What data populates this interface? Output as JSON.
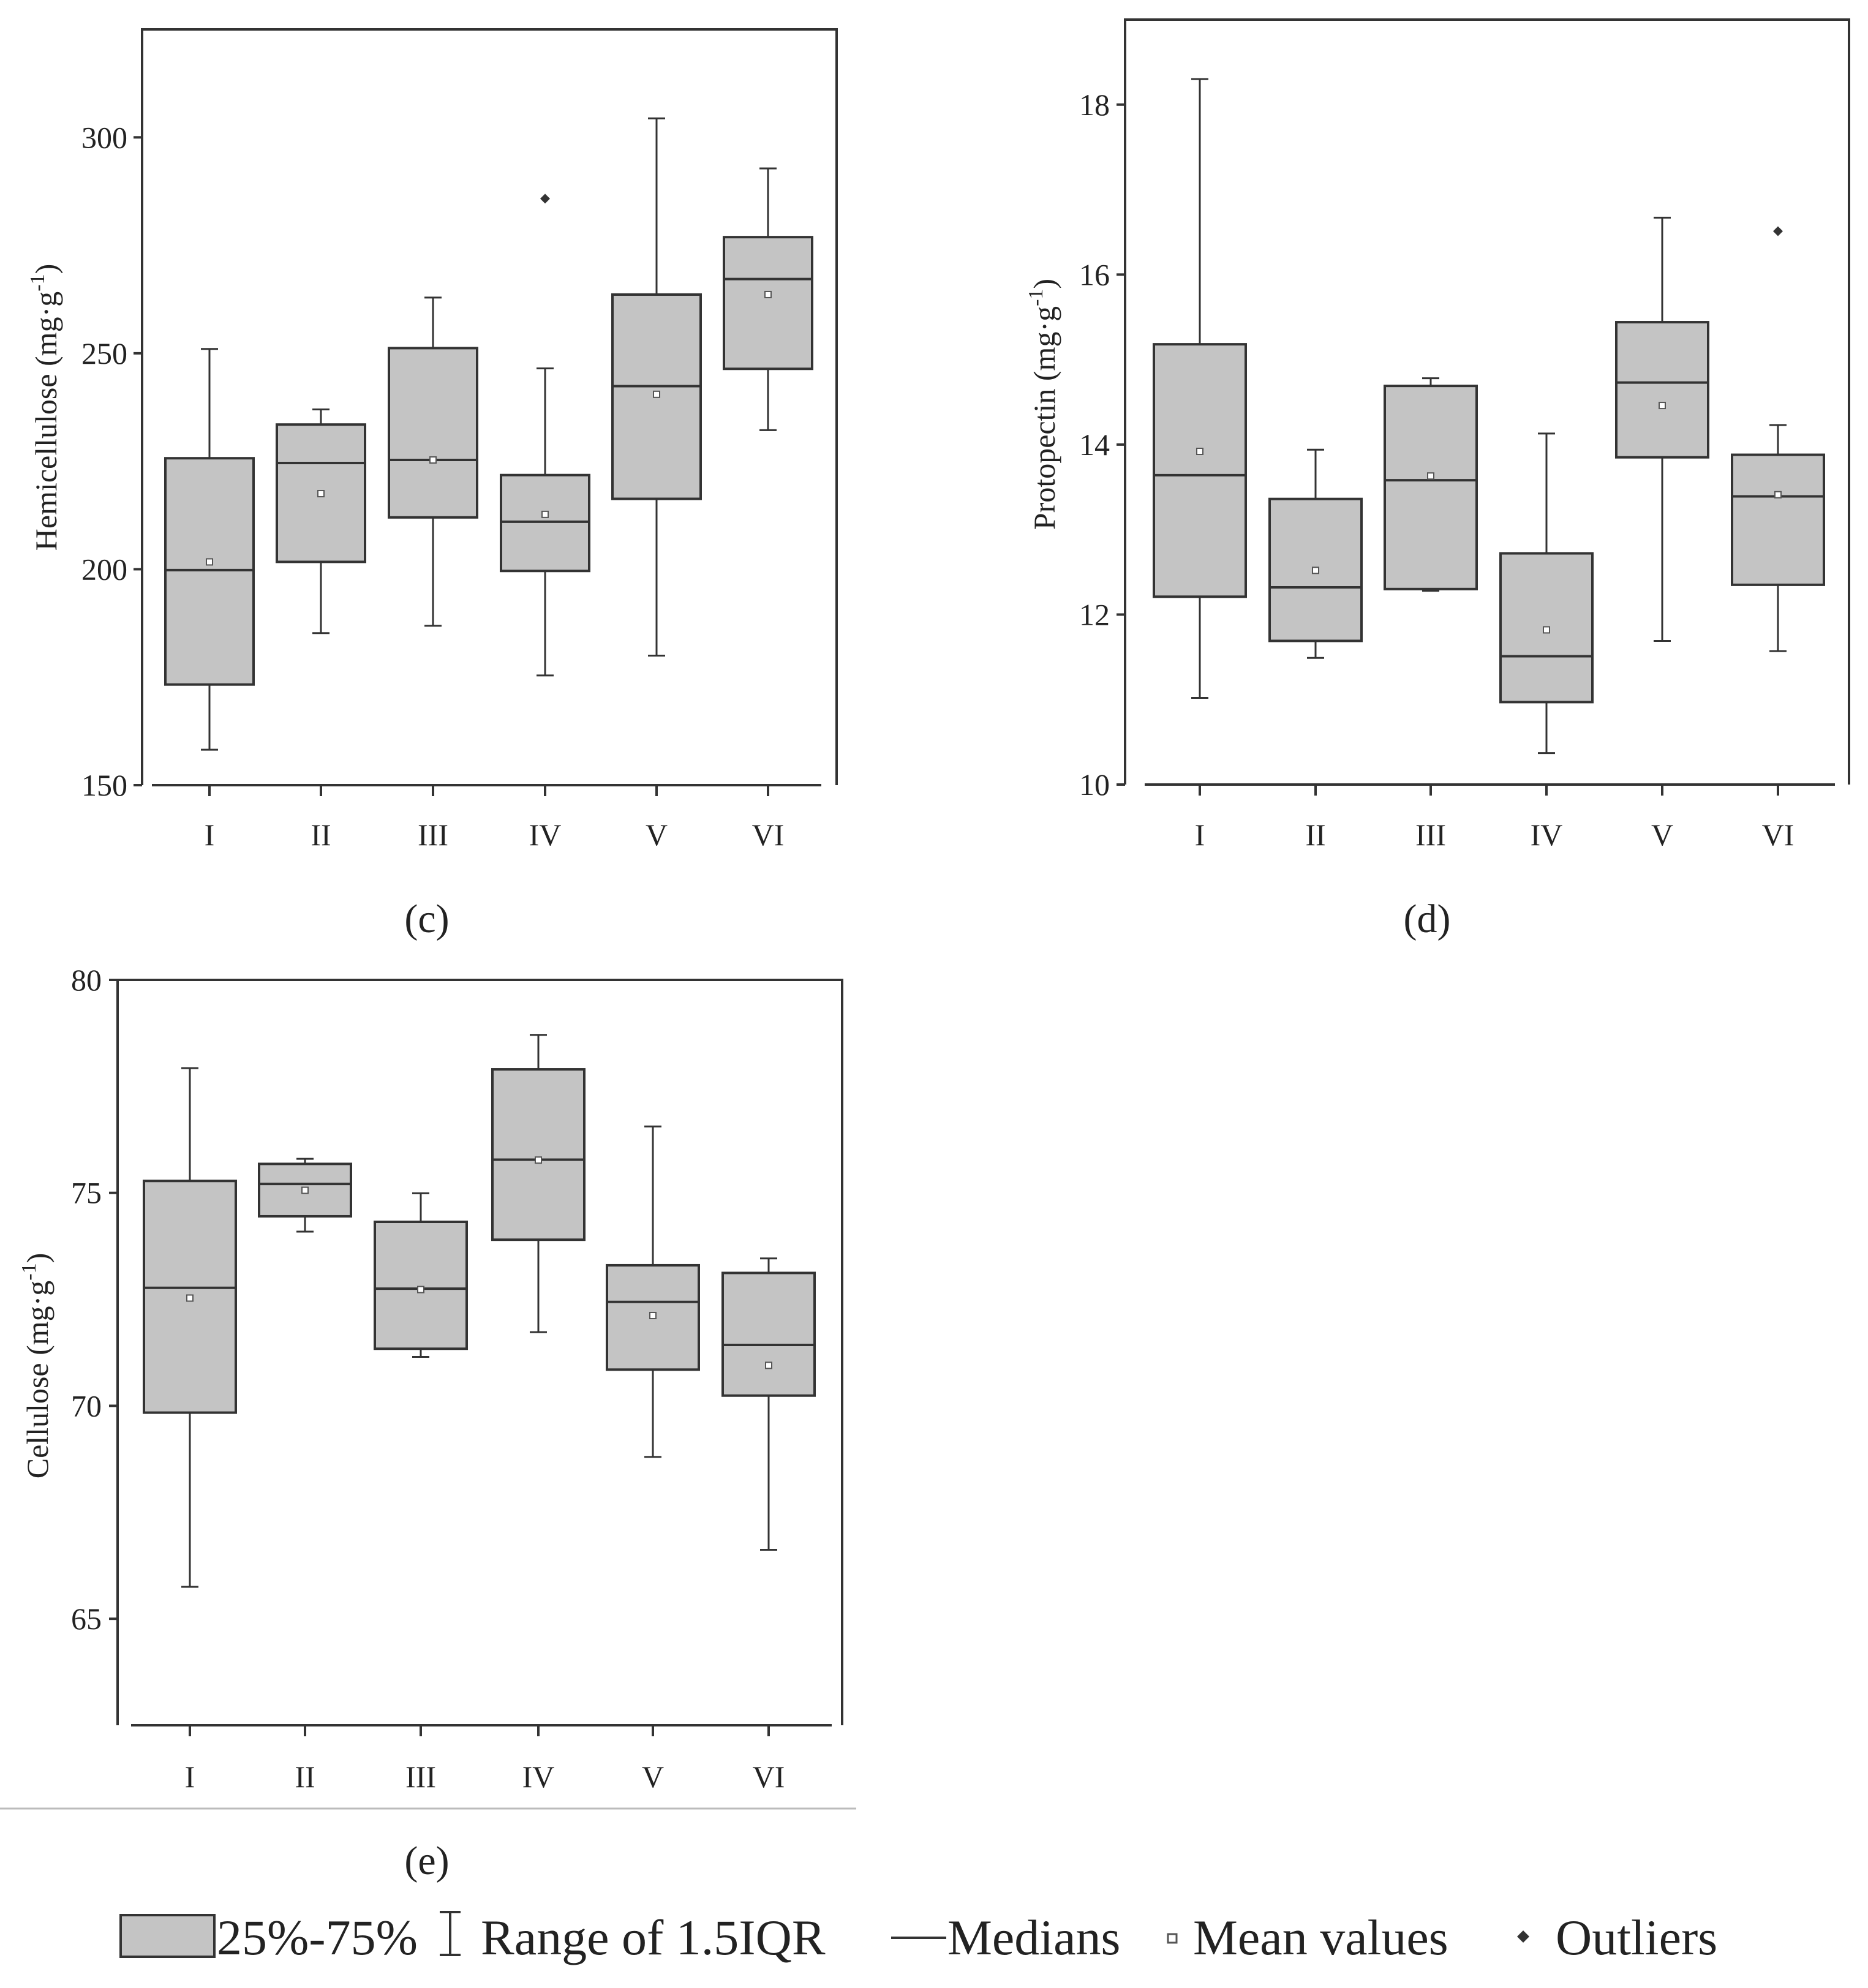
{
  "colors": {
    "box_fill": "#c4c4c4",
    "stroke": "#333333",
    "text": "#222222",
    "divider": "#bbbbbb"
  },
  "chart_data": [
    {
      "type": "box",
      "panel_label": "(c)",
      "ylabel": "Hemicellulose (mg·g",
      "ylabel_sup": "-1",
      "ylabel_close": ")",
      "ylim": [
        150,
        325
      ],
      "yticks": [
        150,
        200,
        250,
        300
      ],
      "ytick_labels": [
        "150",
        "200",
        "250",
        "300"
      ],
      "categories": [
        "I",
        "II",
        "III",
        "IV",
        "V",
        "VI"
      ],
      "boxes": [
        {
          "whisker_low": 158.2,
          "q1": 173.3,
          "median": 199.8,
          "q3": 225.7,
          "whisker_high": 251.0,
          "mean": 201.7,
          "outliers": []
        },
        {
          "whisker_low": 185.2,
          "q1": 201.7,
          "median": 224.6,
          "q3": 233.5,
          "whisker_high": 237.0,
          "mean": 217.5,
          "outliers": []
        },
        {
          "whisker_low": 186.9,
          "q1": 212.0,
          "median": 225.3,
          "q3": 251.2,
          "whisker_high": 262.9,
          "mean": 225.3,
          "outliers": []
        },
        {
          "whisker_low": 175.4,
          "q1": 199.6,
          "median": 211.0,
          "q3": 221.8,
          "whisker_high": 246.5,
          "mean": 212.7,
          "outliers": [
            285.8
          ]
        },
        {
          "whisker_low": 180.0,
          "q1": 216.3,
          "median": 242.4,
          "q3": 263.6,
          "whisker_high": 304.4,
          "mean": 240.5,
          "outliers": []
        },
        {
          "whisker_low": 232.2,
          "q1": 246.4,
          "median": 267.2,
          "q3": 276.9,
          "whisker_high": 292.8,
          "mean": 263.6,
          "outliers": []
        }
      ]
    },
    {
      "type": "box",
      "panel_label": "(d)",
      "ylabel": "Protopectin (mg·g",
      "ylabel_sup": "-1",
      "ylabel_close": ")",
      "ylim": [
        10,
        19
      ],
      "yticks": [
        10,
        12,
        14,
        16,
        18
      ],
      "ytick_labels": [
        "10",
        "12",
        "14",
        "16",
        "18"
      ],
      "categories": [
        "I",
        "II",
        "III",
        "IV",
        "V",
        "VI"
      ],
      "boxes": [
        {
          "whisker_low": 11.02,
          "q1": 12.21,
          "median": 13.64,
          "q3": 15.18,
          "whisker_high": 18.3,
          "mean": 13.92,
          "outliers": []
        },
        {
          "whisker_low": 11.49,
          "q1": 11.69,
          "median": 12.32,
          "q3": 13.36,
          "whisker_high": 13.94,
          "mean": 12.52,
          "outliers": []
        },
        {
          "whisker_low": 12.28,
          "q1": 12.3,
          "median": 13.58,
          "q3": 14.69,
          "whisker_high": 14.78,
          "mean": 13.63,
          "outliers": []
        },
        {
          "whisker_low": 10.37,
          "q1": 10.97,
          "median": 11.51,
          "q3": 12.72,
          "whisker_high": 14.13,
          "mean": 11.82,
          "outliers": []
        },
        {
          "whisker_low": 11.69,
          "q1": 13.85,
          "median": 14.73,
          "q3": 15.44,
          "whisker_high": 16.67,
          "mean": 14.46,
          "outliers": []
        },
        {
          "whisker_low": 11.57,
          "q1": 12.35,
          "median": 13.39,
          "q3": 13.88,
          "whisker_high": 14.23,
          "mean": 13.41,
          "outliers": [
            16.51
          ]
        }
      ]
    },
    {
      "type": "box",
      "panel_label": "(e)",
      "ylabel": "Cellulose (mg·g",
      "ylabel_sup": "-1",
      "ylabel_close": ")",
      "ylim": [
        62.5,
        80
      ],
      "yticks": [
        65,
        70,
        75,
        80
      ],
      "ytick_labels": [
        "65",
        "70",
        "75",
        "80"
      ],
      "categories": [
        "I",
        "II",
        "III",
        "IV",
        "V",
        "VI"
      ],
      "boxes": [
        {
          "whisker_low": 65.75,
          "q1": 69.84,
          "median": 72.77,
          "q3": 75.28,
          "whisker_high": 77.93,
          "mean": 72.53,
          "outliers": []
        },
        {
          "whisker_low": 74.09,
          "q1": 74.45,
          "median": 75.21,
          "q3": 75.68,
          "whisker_high": 75.8,
          "mean": 75.06,
          "outliers": []
        },
        {
          "whisker_low": 71.15,
          "q1": 71.34,
          "median": 72.75,
          "q3": 74.32,
          "whisker_high": 74.99,
          "mean": 72.73,
          "outliers": []
        },
        {
          "whisker_low": 71.73,
          "q1": 73.9,
          "median": 75.78,
          "q3": 77.9,
          "whisker_high": 78.71,
          "mean": 75.77,
          "outliers": []
        },
        {
          "whisker_low": 68.8,
          "q1": 70.85,
          "median": 72.44,
          "q3": 73.3,
          "whisker_high": 76.56,
          "mean": 72.12,
          "outliers": []
        },
        {
          "whisker_low": 66.62,
          "q1": 70.24,
          "median": 71.43,
          "q3": 73.12,
          "whisker_high": 73.46,
          "mean": 70.95,
          "outliers": []
        }
      ]
    }
  ],
  "legend": {
    "box_label": "25%-75%",
    "whisker_label": "Range of 1.5IQR",
    "median_label": "Medians",
    "mean_label": "Mean values",
    "outlier_label": "Outliers"
  }
}
